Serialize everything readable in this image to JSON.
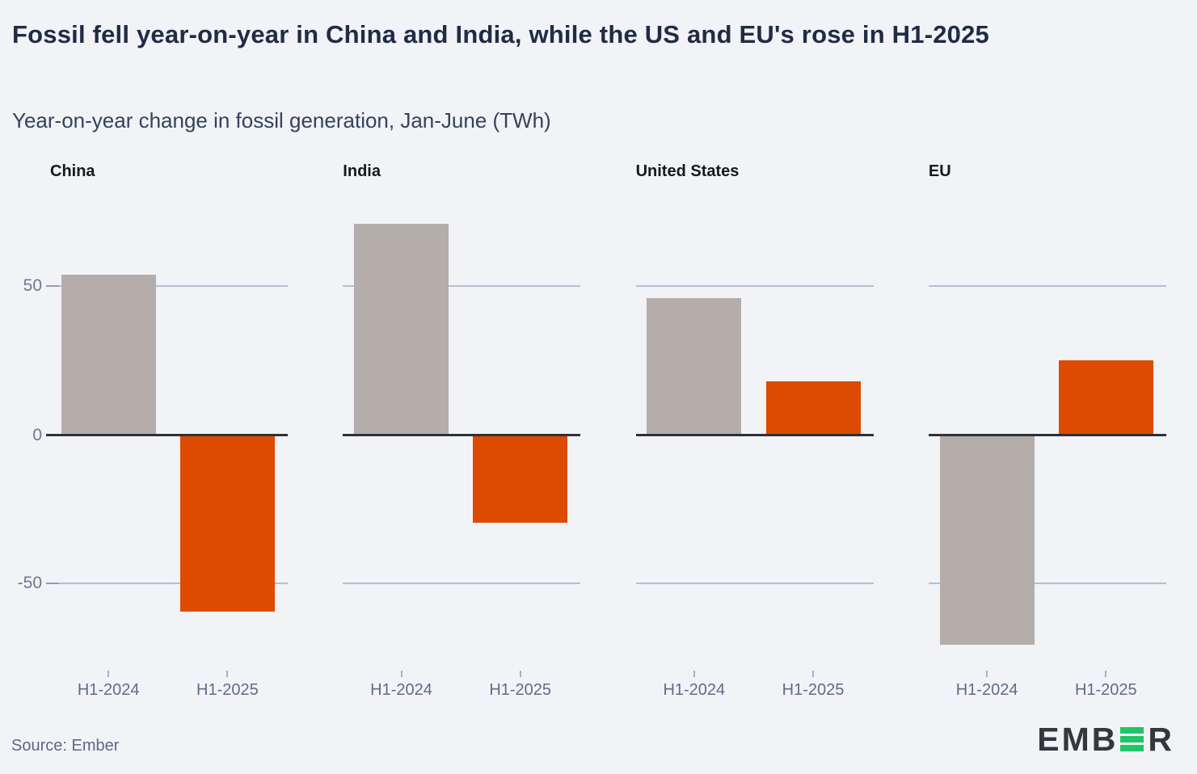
{
  "title": "Fossil fell year-on-year in China and India, while the US and EU's rose in H1-2025",
  "subtitle": "Year-on-year change in fossil generation, Jan-June (TWh)",
  "source": "Source: Ember",
  "logo": {
    "left": "EMB",
    "right": "R",
    "green": "#20c565",
    "dark": "#34373c"
  },
  "colors": {
    "background": "#f2f3f7",
    "bar_h1_2024": "#b5adaa",
    "bar_h1_2025": "#dd4a02",
    "gridline": "#b6bdcf",
    "zero_line": "#2e3138",
    "title": "#212b45",
    "axis_text": "#6d7890"
  },
  "chart_data": {
    "type": "bar",
    "layout": "4 small-multiple panels, shared y scale, horizontal gridlines at +50 and -50, dark zero baseline",
    "categories": [
      "H1-2024",
      "H1-2025"
    ],
    "series": [
      {
        "name": "China",
        "values": [
          54,
          -59
        ]
      },
      {
        "name": "India",
        "values": [
          71,
          -29
        ]
      },
      {
        "name": "United States",
        "values": [
          46,
          18
        ]
      },
      {
        "name": "EU",
        "values": [
          -70,
          25
        ]
      }
    ],
    "title": "Year-on-year change in fossil generation, Jan-June (TWh)",
    "xlabel": "",
    "ylabel": "TWh",
    "yticks": [
      50,
      0,
      -50
    ],
    "ylim": [
      -80,
      92
    ],
    "grid": true,
    "legend": false,
    "series_colors": {
      "H1-2024": "#b5adaa",
      "H1-2025": "#dd4a02"
    }
  }
}
